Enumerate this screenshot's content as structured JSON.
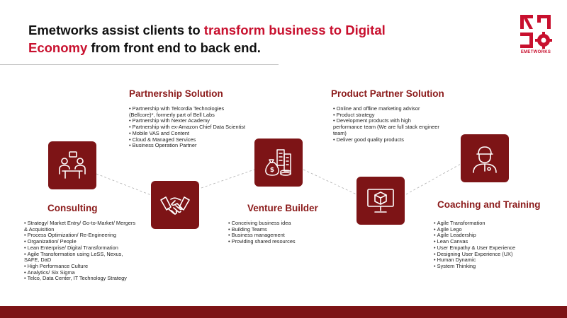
{
  "headline": {
    "part1": "Emetworks assist clients to ",
    "highlight1": "transform business to Digital Economy",
    "part2": " from front end to back end."
  },
  "brand": {
    "name": "EMETWORKS",
    "accent_color": "#c8102e",
    "tile_color": "#7d1416",
    "title_color": "#8b1a1a"
  },
  "sections": {
    "consulting": {
      "title": "Consulting",
      "icon": "meeting-icon",
      "items": [
        "Strategy/ Market Entry/ Go-to-Market/ Mergers & Acquisition",
        "Process Optimization/ Re-Engineering",
        "Organization/ People",
        "Lean Enterprise/ Digital Transformation",
        "Agile Transformation using LeSS, Nexus, SAFE, DaD",
        "High Performance Culture",
        "Analytics/ Six Sigma",
        "Telco, Data Center, IT Technology Strategy"
      ]
    },
    "partnership": {
      "title": "Partnership Solution",
      "icon": "handshake-icon",
      "items": [
        "Partnership with Telcordia Technologies (Bellcore)*, formerly part of Bell Labs",
        "Partnership with Nexter Academy",
        "Partnership with ex-Amazon Chief Data Scientist",
        "Mobile VAS and Content",
        "Cloud & Managed Services",
        "Business Operation Partner"
      ]
    },
    "venture": {
      "title": "Venture Builder",
      "icon": "city-money-icon",
      "items": [
        "Conceiving business idea",
        "Building Teams",
        "Business management",
        "Providing shared resources"
      ]
    },
    "product": {
      "title": "Product Partner Solution",
      "icon": "monitor-box-icon",
      "items": [
        "Online and offline marketing advisor",
        "Product strategy",
        "Development products with high performance team (We are full stack engineer team)",
        "Deliver good quality products"
      ]
    },
    "coaching": {
      "title": "Coaching and Training",
      "icon": "coach-icon",
      "items": [
        "Agile Transformation",
        "Agile Lego",
        "Agile Leadership",
        "Lean Canvas",
        "User Empathy & User Experience",
        "Designing User Experience (UX)",
        "Human Dynamic",
        "System Thinking"
      ]
    }
  }
}
